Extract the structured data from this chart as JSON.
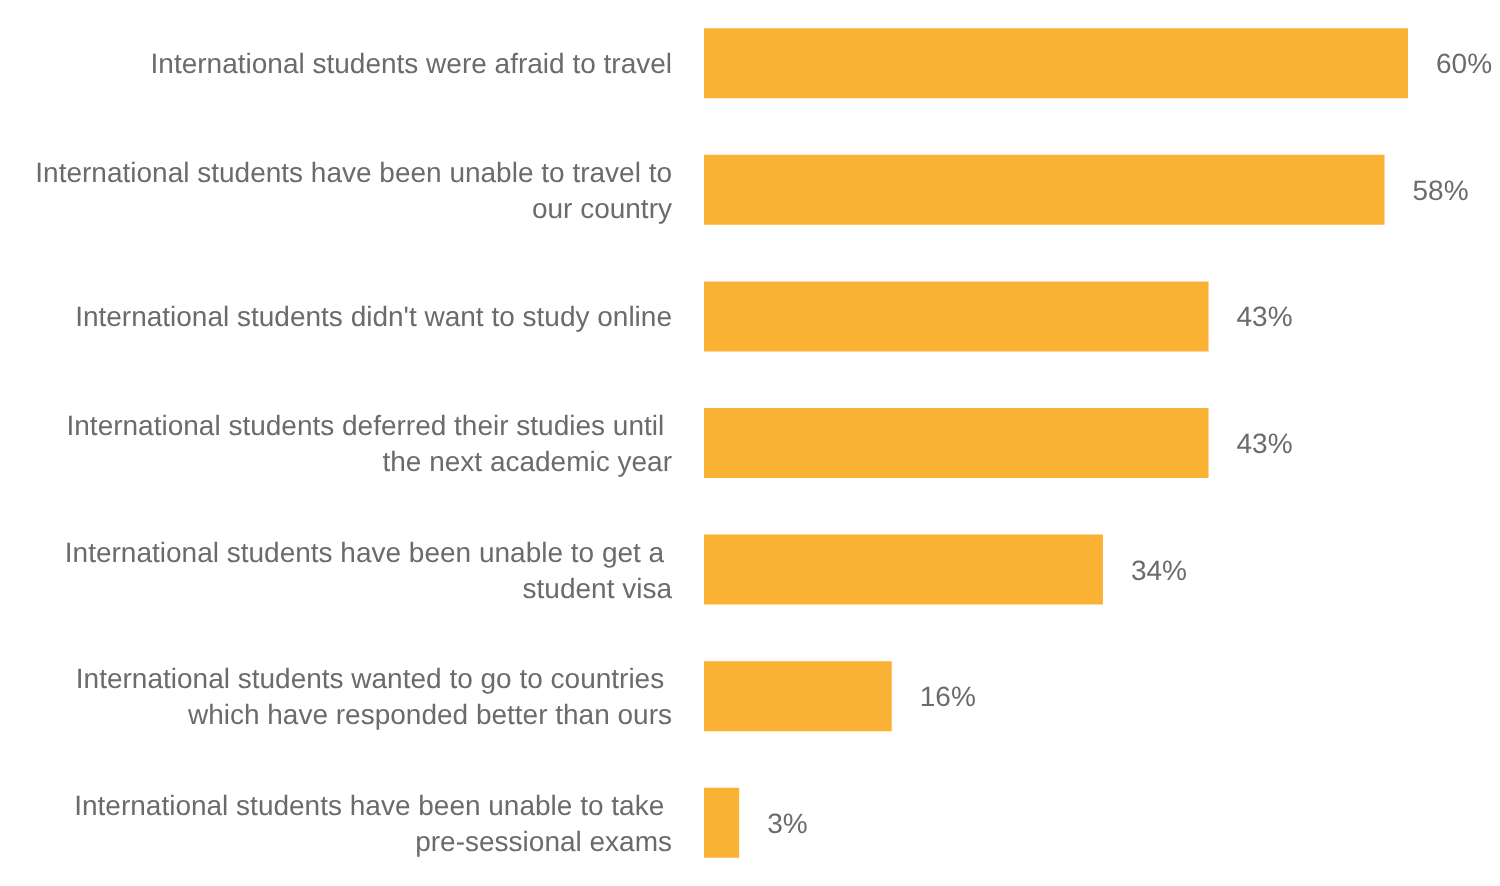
{
  "chart_data": {
    "type": "bar",
    "orientation": "horizontal",
    "categories": [
      "International students were afraid to travel",
      "International students have been unable to travel to our country",
      "International students didn't want to study online",
      "International students deferred their studies until the next academic year",
      "International students have been unable to get a student visa",
      "International students wanted to go to countries which have responded better than ours",
      "International students have been unable to take pre-sessional exams"
    ],
    "values": [
      60,
      58,
      43,
      43,
      34,
      16,
      3
    ],
    "color": "#f9b233",
    "value_labels": [
      "60%",
      "58%",
      "43%",
      "43%",
      "34%",
      "16%",
      "3%"
    ]
  }
}
